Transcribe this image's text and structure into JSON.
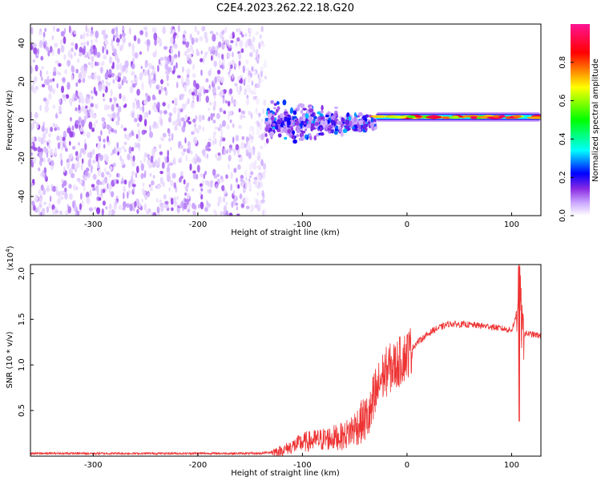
{
  "title": "C2E4.2023.262.22.18.G20",
  "chart_data": [
    {
      "type": "heatmap",
      "xlabel": "Height of straight line (km)",
      "ylabel": "Frequency (Hz)",
      "xlim": [
        -360,
        128
      ],
      "ylim": [
        -50,
        50
      ],
      "xticks": [
        -300,
        -200,
        -100,
        0,
        100
      ],
      "xtick_labels": [
        "-300",
        "-200",
        "-100",
        "0",
        "100"
      ],
      "yticks": [
        -40,
        -20,
        0,
        20,
        40
      ],
      "ytick_labels": [
        "-40",
        "-20",
        "0",
        "20",
        "40"
      ],
      "colorbar": {
        "label": "Normalized spectral amplitude",
        "range": [
          0,
          1
        ],
        "ticks": [
          0.0,
          0.2,
          0.4,
          0.6,
          0.8
        ],
        "tick_labels": [
          "0.0",
          "0.2",
          "0.4",
          "0.6",
          "0.8"
        ],
        "colors": [
          "#ffffff",
          "#c9a3ff",
          "#8a2be2",
          "#0000ff",
          "#00ffff",
          "#00ff00",
          "#ffff00",
          "#ff0000",
          "#ff00a0"
        ]
      },
      "regions": [
        {
          "x_range": [
            -360,
            -135
          ],
          "y_range": [
            -50,
            48
          ],
          "level": 0.2,
          "pattern": "noise"
        },
        {
          "x_range": [
            -135,
            -30
          ],
          "y_range": [
            -15,
            12
          ],
          "level": 0.35,
          "pattern": "blobs"
        },
        {
          "x_range": [
            -30,
            128
          ],
          "y_range": [
            -1,
            4
          ],
          "level": 0.85,
          "pattern": "band",
          "center_freq": 1.5
        }
      ]
    },
    {
      "type": "line",
      "xlabel": "Height of straight line (km)",
      "ylabel": "SNR (10 * v/v)",
      "scale_label": "(x10^4)",
      "xlim": [
        -360,
        128
      ],
      "ylim": [
        0,
        2.1
      ],
      "xticks": [
        -300,
        -200,
        -100,
        0,
        100
      ],
      "xtick_labels": [
        "-300",
        "-200",
        "-100",
        "0",
        "100"
      ],
      "yticks": [
        0.5,
        1.0,
        1.5,
        2.0
      ],
      "ytick_labels": [
        "0.5",
        "1.0",
        "1.5",
        "2.0"
      ],
      "color": "#ee3333",
      "key_points": {
        "x": [
          -360,
          -140,
          -120,
          -100,
          -60,
          -35,
          -25,
          -18,
          -10,
          0,
          10,
          25,
          40,
          60,
          80,
          100,
          105,
          107,
          110,
          128
        ],
        "y": [
          0.03,
          0.03,
          0.06,
          0.15,
          0.22,
          0.45,
          0.85,
          0.95,
          1.0,
          1.12,
          1.25,
          1.38,
          1.45,
          1.44,
          1.42,
          1.38,
          1.55,
          2.05,
          1.35,
          1.32
        ]
      }
    }
  ]
}
